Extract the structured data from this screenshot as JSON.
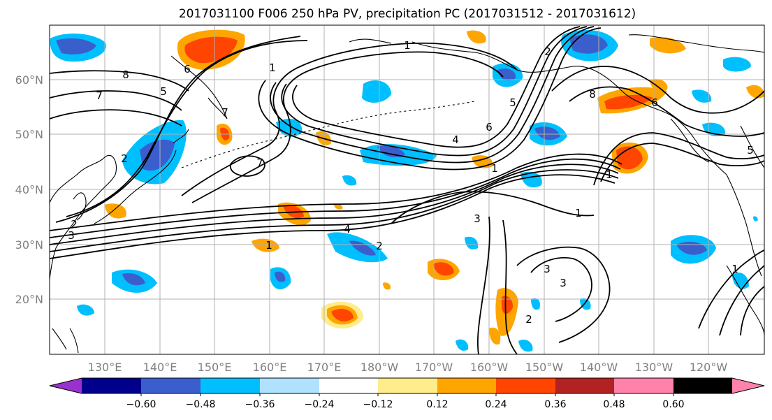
{
  "title": "2017031100 F006 250 hPa PV, precipitation PC (2017031512 - 2017031612)",
  "map": {
    "lat_labels": [
      "60°N",
      "50°N",
      "40°N",
      "30°N",
      "20°N"
    ],
    "lon_labels": [
      "130°E",
      "140°E",
      "150°E",
      "160°E",
      "170°E",
      "180°W",
      "170°W",
      "160°W",
      "150°W",
      "140°W",
      "130°W",
      "120°W"
    ],
    "contour_labels": [
      "8",
      "7",
      "6",
      "5",
      "7",
      "1",
      "1",
      "2",
      "6",
      "5",
      "4",
      "8",
      "6",
      "2",
      "7",
      "1",
      "1",
      "3",
      "3",
      "4",
      "2",
      "1",
      "3",
      "1",
      "3",
      "2",
      "2",
      "1",
      "5"
    ],
    "grid": true
  },
  "colorbar": {
    "ticks": [
      "−0.60",
      "−0.48",
      "−0.36",
      "−0.24",
      "−0.12",
      "0.12",
      "0.24",
      "0.36",
      "0.48",
      "0.60"
    ],
    "colors": [
      "#9932cc",
      "#00008b",
      "#3a5fcd",
      "#00bfff",
      "#b0e2ff",
      "#ffffff",
      "#ffec8b",
      "#ffa500",
      "#ff4500",
      "#b22222",
      "#ff82ab"
    ]
  }
}
